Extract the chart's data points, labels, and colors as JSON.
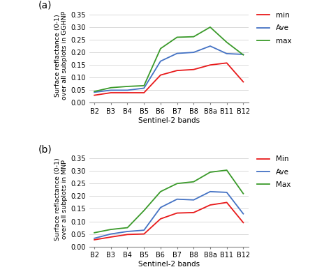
{
  "bands": [
    "B2",
    "B3",
    "B4",
    "B5",
    "B6",
    "B7",
    "B8",
    "B8a",
    "B11",
    "B12"
  ],
  "panel_a": {
    "label": "(a)",
    "ylabel": "Surface reflactance (0-1)\nover all subplots in GGHNP",
    "xlabel": "Sentinel-2 bands",
    "min": [
      0.03,
      0.04,
      0.04,
      0.04,
      0.11,
      0.128,
      0.132,
      0.15,
      0.158,
      0.083
    ],
    "ave": [
      0.042,
      0.05,
      0.05,
      0.058,
      0.165,
      0.196,
      0.2,
      0.225,
      0.195,
      0.192
    ],
    "max": [
      0.045,
      0.06,
      0.065,
      0.068,
      0.215,
      0.26,
      0.262,
      0.3,
      0.24,
      0.19
    ],
    "legend_labels": [
      "min",
      "Ave",
      "max"
    ]
  },
  "panel_b": {
    "label": "(b)",
    "ylabel": "Surface reflactance (0-1)\nover all subplots in MNP",
    "xlabel": "Sentinel-2 bands",
    "min": [
      0.027,
      0.038,
      0.048,
      0.05,
      0.11,
      0.133,
      0.135,
      0.165,
      0.175,
      0.095
    ],
    "ave": [
      0.033,
      0.05,
      0.06,
      0.065,
      0.155,
      0.188,
      0.185,
      0.218,
      0.215,
      0.13
    ],
    "max": [
      0.055,
      0.068,
      0.075,
      0.143,
      0.218,
      0.25,
      0.257,
      0.295,
      0.303,
      0.21
    ],
    "legend_labels": [
      "Min",
      "Ave",
      "Max"
    ]
  },
  "ylim": [
    0.0,
    0.375
  ],
  "yticks": [
    0.0,
    0.05,
    0.1,
    0.15,
    0.2,
    0.25,
    0.3,
    0.35
  ],
  "colors": {
    "min": "#e8191a",
    "ave": "#4472c4",
    "max": "#3a9a2a"
  },
  "linewidth": 1.3,
  "figsize": [
    4.74,
    3.93
  ],
  "dpi": 100
}
